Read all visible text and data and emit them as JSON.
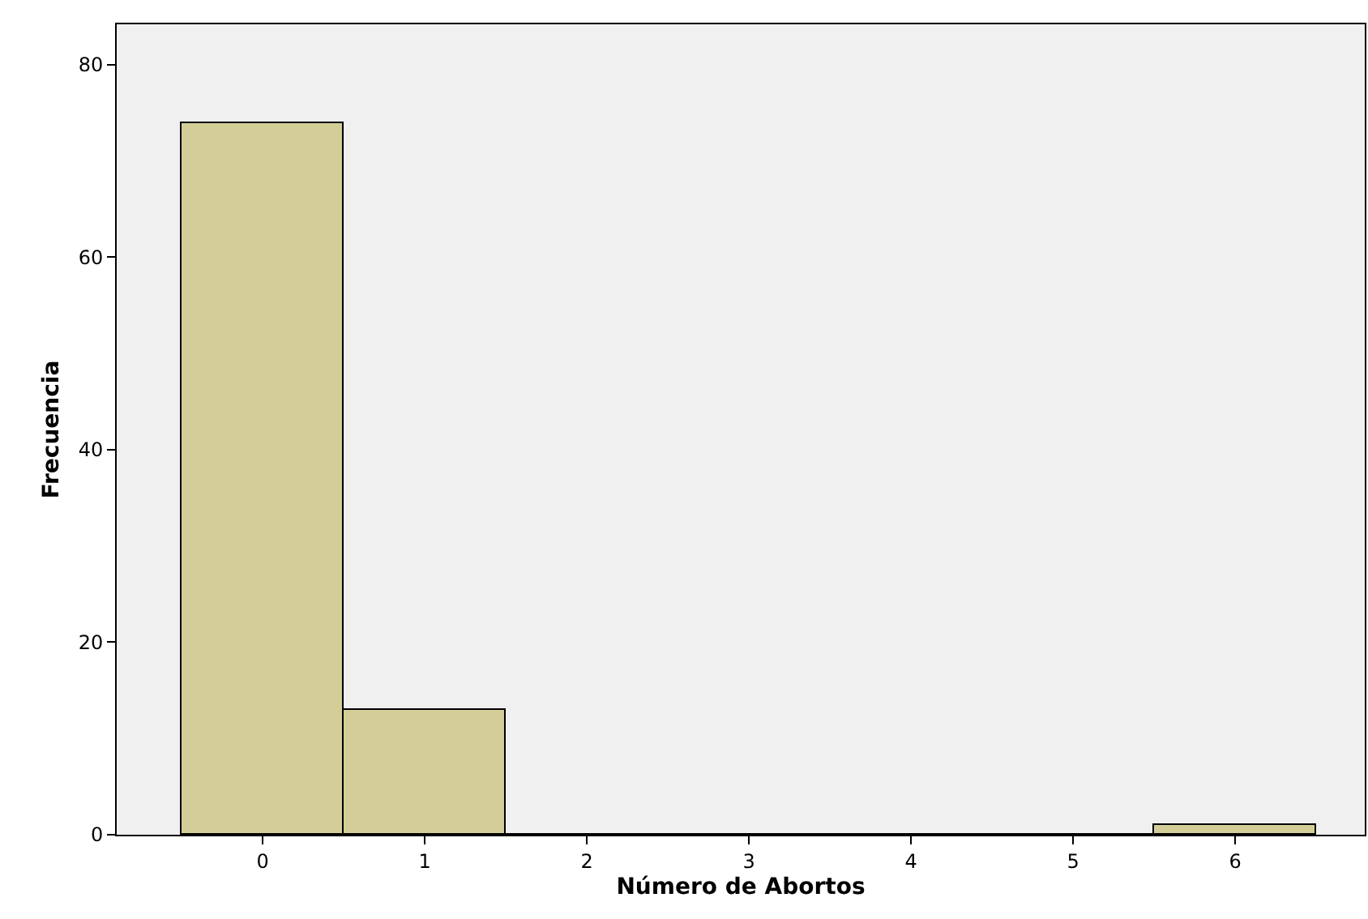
{
  "chart_data": {
    "type": "histogram",
    "xlabel": "Número de Abortos",
    "ylabel": "Frecuencia",
    "bins": [
      -0.5,
      0.5,
      1.5,
      2.5,
      3.5,
      4.5,
      5.5,
      6.5
    ],
    "values": [
      74,
      13,
      0,
      0,
      0,
      0,
      1
    ],
    "color": "#d3ce97",
    "xlim": [
      -0.9,
      6.8
    ],
    "xticks": [
      0,
      1,
      2,
      3,
      4,
      5,
      6
    ],
    "ylim": [
      0,
      84.2
    ],
    "yticks": [
      0,
      20,
      40,
      60,
      80
    ],
    "grid": false
  }
}
